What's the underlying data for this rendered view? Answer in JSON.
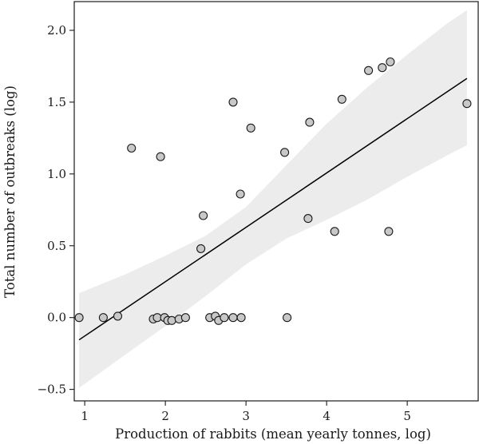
{
  "chart_data": {
    "type": "scatter",
    "title": "",
    "xlabel": "Production of rabbits (mean yearly tonnes, log)",
    "ylabel": "Total number of outbreaks (log)",
    "xlim": [
      0.87,
      5.88
    ],
    "ylim": [
      -0.58,
      2.2
    ],
    "xticks": [
      1,
      2,
      3,
      4,
      5
    ],
    "yticks": [
      -0.5,
      0.0,
      0.5,
      1.0,
      1.5,
      2.0
    ],
    "xtick_labels": [
      "1",
      "2",
      "3",
      "4",
      "5"
    ],
    "ytick_labels": [
      "−0.5",
      "0.0",
      "0.5",
      "1.0",
      "1.5",
      "2.0"
    ],
    "grid": false,
    "marker_color": "#c8c8c8",
    "marker_edge_color": "#1a1a1a",
    "band_color": "#ececec",
    "line_color": "#000000",
    "points": [
      {
        "x": 0.93,
        "y": 0.0
      },
      {
        "x": 1.23,
        "y": 0.0
      },
      {
        "x": 1.41,
        "y": 0.01
      },
      {
        "x": 1.58,
        "y": 1.18
      },
      {
        "x": 1.85,
        "y": -0.01
      },
      {
        "x": 1.9,
        "y": 0.0
      },
      {
        "x": 1.94,
        "y": 1.12
      },
      {
        "x": 1.99,
        "y": 0.0
      },
      {
        "x": 2.03,
        "y": -0.02
      },
      {
        "x": 2.08,
        "y": -0.02
      },
      {
        "x": 2.17,
        "y": -0.01
      },
      {
        "x": 2.25,
        "y": 0.0
      },
      {
        "x": 2.44,
        "y": 0.48
      },
      {
        "x": 2.47,
        "y": 0.71
      },
      {
        "x": 2.55,
        "y": 0.0
      },
      {
        "x": 2.62,
        "y": 0.01
      },
      {
        "x": 2.66,
        "y": -0.02
      },
      {
        "x": 2.73,
        "y": 0.0
      },
      {
        "x": 2.84,
        "y": 1.5
      },
      {
        "x": 2.84,
        "y": 0.0
      },
      {
        "x": 2.93,
        "y": 0.86
      },
      {
        "x": 2.94,
        "y": 0.0
      },
      {
        "x": 3.06,
        "y": 1.32
      },
      {
        "x": 3.48,
        "y": 1.15
      },
      {
        "x": 3.51,
        "y": 0.0
      },
      {
        "x": 3.77,
        "y": 0.69
      },
      {
        "x": 3.79,
        "y": 1.36
      },
      {
        "x": 4.1,
        "y": 0.6
      },
      {
        "x": 4.19,
        "y": 1.52
      },
      {
        "x": 4.52,
        "y": 1.72
      },
      {
        "x": 4.69,
        "y": 1.74
      },
      {
        "x": 4.77,
        "y": 0.6
      },
      {
        "x": 4.79,
        "y": 1.78
      },
      {
        "x": 5.74,
        "y": 1.49
      }
    ],
    "regression": {
      "x": [
        0.93,
        5.74
      ],
      "y": [
        -0.155,
        1.665
      ]
    },
    "confidence_band": {
      "x": [
        0.93,
        1.5,
        2.0,
        2.5,
        3.0,
        3.5,
        4.0,
        4.5,
        5.0,
        5.5,
        5.74
      ],
      "upper": [
        0.17,
        0.3,
        0.43,
        0.57,
        0.77,
        1.06,
        1.35,
        1.6,
        1.83,
        2.05,
        2.14
      ],
      "lower": [
        -0.49,
        -0.26,
        -0.06,
        0.15,
        0.37,
        0.55,
        0.68,
        0.82,
        0.98,
        1.13,
        1.2
      ]
    }
  }
}
